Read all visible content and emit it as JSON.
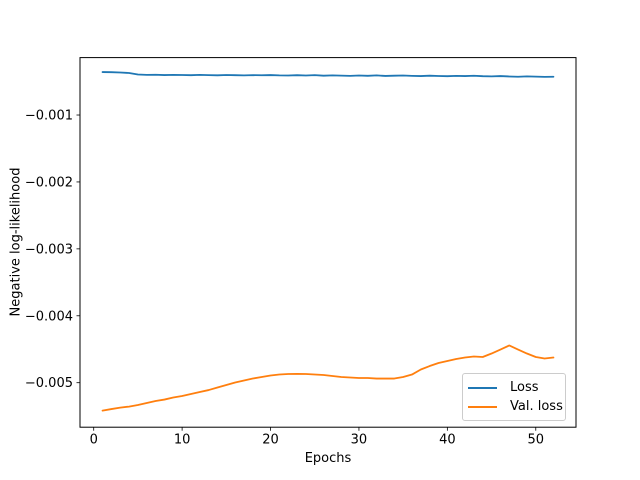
{
  "figure": {
    "background": "#ffffff",
    "text_color": "#000000",
    "spine_color": "#000000",
    "legend_border_color": "#cccccc"
  },
  "chart_data": {
    "type": "line",
    "title": "",
    "xlabel": "Epochs",
    "ylabel": "Negative log-likelihood",
    "grid": false,
    "legend_position": "lower right",
    "xlim": [
      -1.55,
      54.55
    ],
    "ylim": [
      -0.005665,
      -0.000142
    ],
    "xticks": {
      "values": [
        0,
        10,
        20,
        30,
        40,
        50
      ],
      "labels": [
        "0",
        "10",
        "20",
        "30",
        "40",
        "50"
      ]
    },
    "yticks": {
      "values": [
        -0.005,
        -0.004,
        -0.003,
        -0.002,
        -0.001
      ],
      "labels": [
        "−0.005",
        "−0.004",
        "−0.003",
        "−0.002",
        "−0.001"
      ]
    },
    "x": [
      1,
      2,
      3,
      4,
      5,
      6,
      7,
      8,
      9,
      10,
      11,
      12,
      13,
      14,
      15,
      16,
      17,
      18,
      19,
      20,
      21,
      22,
      23,
      24,
      25,
      26,
      27,
      28,
      29,
      30,
      31,
      32,
      33,
      34,
      35,
      36,
      37,
      38,
      39,
      40,
      41,
      42,
      43,
      44,
      45,
      46,
      47,
      48,
      49,
      50,
      51,
      52
    ],
    "series": [
      {
        "name": "Loss",
        "color": "#1f77b4",
        "values": [
          -0.000358,
          -0.00036,
          -0.000365,
          -0.000372,
          -0.000395,
          -0.0004,
          -0.000398,
          -0.000403,
          -0.0004,
          -0.000402,
          -0.000405,
          -0.0004,
          -0.000404,
          -0.000407,
          -0.000402,
          -0.000405,
          -0.000408,
          -0.000404,
          -0.000406,
          -0.000403,
          -0.000408,
          -0.00041,
          -0.000405,
          -0.000409,
          -0.000404,
          -0.000412,
          -0.000408,
          -0.000411,
          -0.000415,
          -0.00041,
          -0.000414,
          -0.000408,
          -0.000416,
          -0.000412,
          -0.00041,
          -0.000415,
          -0.000418,
          -0.000412,
          -0.000417,
          -0.00042,
          -0.000415,
          -0.000418,
          -0.000413,
          -0.00042,
          -0.000422,
          -0.000418,
          -0.000424,
          -0.000428,
          -0.000422,
          -0.000426,
          -0.00043,
          -0.000428
        ]
      },
      {
        "name": "Val. loss",
        "color": "#ff7f0e",
        "values": [
          -0.005417,
          -0.005394,
          -0.005372,
          -0.005357,
          -0.005334,
          -0.005304,
          -0.005274,
          -0.005252,
          -0.005222,
          -0.005199,
          -0.005169,
          -0.005139,
          -0.00511,
          -0.005072,
          -0.005035,
          -0.004997,
          -0.004967,
          -0.004938,
          -0.004915,
          -0.004893,
          -0.004878,
          -0.00487,
          -0.004868,
          -0.00487,
          -0.004878,
          -0.004885,
          -0.0049,
          -0.004915,
          -0.004922,
          -0.00493,
          -0.00493,
          -0.004938,
          -0.004938,
          -0.004938,
          -0.004915,
          -0.004878,
          -0.004803,
          -0.004751,
          -0.004706,
          -0.004676,
          -0.004646,
          -0.004624,
          -0.004609,
          -0.004616,
          -0.004564,
          -0.004504,
          -0.004444,
          -0.004504,
          -0.004564,
          -0.004616,
          -0.004639,
          -0.004624
        ]
      }
    ]
  }
}
